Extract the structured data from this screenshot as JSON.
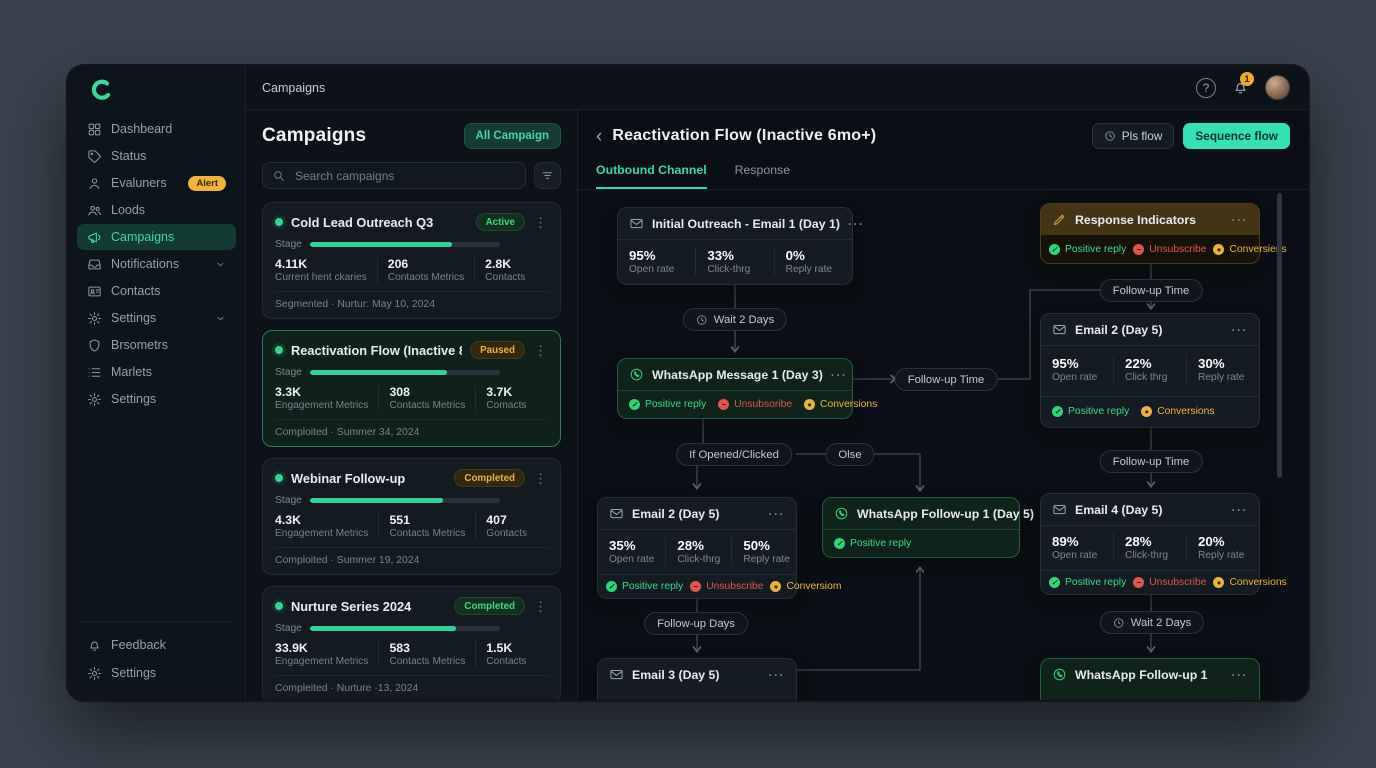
{
  "colors": {
    "accent": "#35e0b5",
    "positive": "#3ddc8a",
    "negative": "#e0564e",
    "warning": "#eeb43f",
    "alert_badge": "#f0b43c"
  },
  "topbar": {
    "breadcrumb": "Campaigns",
    "help_label": "?",
    "notification_count": "1"
  },
  "sidebar": {
    "items": [
      {
        "label": "Dashbeard"
      },
      {
        "label": "Status"
      },
      {
        "label": "Evaluners",
        "badge": "Alert"
      },
      {
        "label": "Loods"
      },
      {
        "label": "Campaigns"
      },
      {
        "label": "Notifications"
      },
      {
        "label": "Contacts"
      },
      {
        "label": "Settings"
      },
      {
        "label": "Brsometrs"
      },
      {
        "label": "Marlets"
      },
      {
        "label": "Settings"
      }
    ],
    "footer": [
      {
        "label": "Feedback"
      },
      {
        "label": "Settings"
      }
    ]
  },
  "panel": {
    "title": "Campaigns",
    "all_button": "All Campaign",
    "search_placeholder": "Search campaigns",
    "card_menu": "⋮",
    "stage_label": "Stage",
    "cards": [
      {
        "title": "Cold Lead Outreach Q3",
        "status": "Active",
        "progress_pct": 75,
        "stats": [
          {
            "v": "4.11K",
            "l": "Current hent ckaries"
          },
          {
            "v": "206",
            "l": "Contaots Metrics"
          },
          {
            "v": "2.8K",
            "l": "Contacts"
          }
        ],
        "footer": "Segmented  ·  Nurtur: May 10, 2024"
      },
      {
        "title": "Reactivation Flow (Inactive 8mo+)",
        "status": "Paused",
        "progress_pct": 72,
        "stats": [
          {
            "v": "3.3K",
            "l": "Engagement Metrics"
          },
          {
            "v": "308",
            "l": "Contacts Metrics"
          },
          {
            "v": "3.7K",
            "l": "Comacts"
          }
        ],
        "footer": "Comploited  ·  Summer 34, 2024"
      },
      {
        "title": "Webinar Follow-up",
        "status": "Completed",
        "progress_pct": 70,
        "stats": [
          {
            "v": "4.3K",
            "l": "Engagement Metrics"
          },
          {
            "v": "551",
            "l": "Contacts Metrics"
          },
          {
            "v": "407",
            "l": "Gontacts"
          }
        ],
        "footer": "Comploited  ·  Summer 19, 2024"
      },
      {
        "title": "Nurture Series 2024",
        "status": "Completed",
        "progress_pct": 77,
        "stats": [
          {
            "v": "33.9K",
            "l": "Engagement Metrics"
          },
          {
            "v": "583",
            "l": "Contacts Metrics"
          },
          {
            "v": "1.5K",
            "l": "Contacts"
          }
        ],
        "footer": "Compleited  ·  Nurture ·13, 2024"
      }
    ]
  },
  "flow": {
    "back": "‹",
    "title": "Reactivation Flow (Inactive 6mo+)",
    "pls_button": "Pls flow",
    "sequence_button": "Sequence flow",
    "tabs": [
      {
        "label": "Outbound Channel"
      },
      {
        "label": "Response"
      }
    ],
    "node_menu": "···",
    "nodes": {
      "initial": {
        "title": "Initial Outreach - Email 1 (Day 1)",
        "stats": [
          {
            "v": "95%",
            "l": "Open rate"
          },
          {
            "v": "33%",
            "l": "Click-thrg"
          },
          {
            "v": "0%",
            "l": "Reply rate"
          }
        ]
      },
      "whatsapp1": {
        "title": "WhatsApp Message 1 (Day 3)",
        "tags": [
          {
            "label": "Positive reply"
          },
          {
            "label": "Unsubsoribe"
          },
          {
            "label": "Conversions"
          }
        ]
      },
      "email2mid": {
        "title": "Email 2 (Day 5)",
        "stats": [
          {
            "v": "35%",
            "l": "Open rate"
          },
          {
            "v": "28%",
            "l": "Click-thrg"
          },
          {
            "v": "50%",
            "l": "Reply rate"
          }
        ],
        "tags": [
          {
            "label": "Positive reply"
          },
          {
            "label": "Unsubscribe"
          },
          {
            "label": "Conversiom"
          }
        ]
      },
      "email3": {
        "title": "Email 3 (Day 5)"
      },
      "wafollow_mid": {
        "title": "WhatsApp Follow-up 1 (Day 5)",
        "tags": [
          {
            "label": "Positive reply"
          }
        ]
      },
      "resp": {
        "title": "Response Indicators",
        "tags": [
          {
            "label": "Positive reply"
          },
          {
            "label": "Unsubscribe"
          },
          {
            "label": "Conversiens"
          }
        ]
      },
      "email2r": {
        "title": "Email 2 (Day 5)",
        "stats": [
          {
            "v": "95%",
            "l": "Open rate"
          },
          {
            "v": "22%",
            "l": "Click thrg"
          },
          {
            "v": "30%",
            "l": "Reply rate"
          }
        ],
        "tags": [
          {
            "label": "Positive reply"
          },
          {
            "label": "Conversions"
          }
        ]
      },
      "email4": {
        "title": "Email 4 (Day 5)",
        "stats": [
          {
            "v": "89%",
            "l": "Open rate"
          },
          {
            "v": "28%",
            "l": "Click-thrg"
          },
          {
            "v": "20%",
            "l": "Reply rate"
          }
        ],
        "tags": [
          {
            "label": "Positive reply"
          },
          {
            "label": "Unsubscribe"
          },
          {
            "label": "Conversions"
          }
        ]
      },
      "wafollow_bottom": {
        "title": "WhatsApp Follow-up 1"
      }
    },
    "pills": {
      "wait_a": "Wait 2 Days",
      "if_opened": "If Opened/Clicked",
      "olse": "Olse",
      "followup_time_mid": "Follow-up Time",
      "followup_days": "Follow-up Days",
      "followup_time_1": "Follow-up Time",
      "followup_time_2": "Follow-up Time",
      "wait_d": "Wait 2 Days"
    }
  }
}
